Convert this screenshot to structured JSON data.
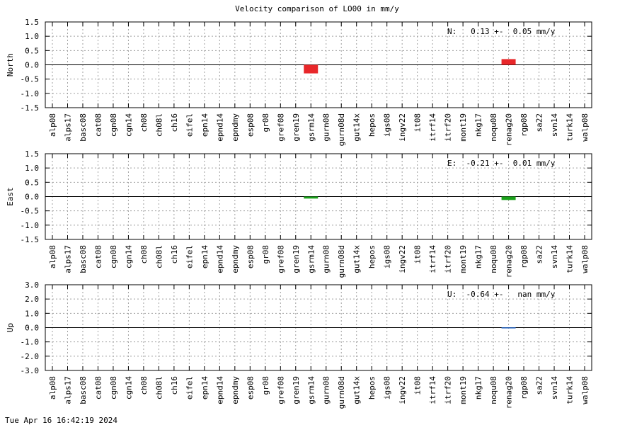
{
  "title": "Velocity comparison of LO00 in mm/y",
  "footer_timestamp": "Tue Apr 16 16:42:19 2024",
  "colors": {
    "north": "#e8272a",
    "east": "#1aa21a",
    "up": "#1f5fbf"
  },
  "chart_data": [
    {
      "type": "bar",
      "ylabel": "North",
      "ylim": [
        -1.5,
        1.5
      ],
      "yticks": [
        1.5,
        1.0,
        0.5,
        0.0,
        -0.5,
        -1.0,
        -1.5
      ],
      "ytick_labels": [
        "1.5",
        "1.0",
        "0.5",
        "0.0",
        "-0.5",
        "-1.0",
        "-1.5"
      ],
      "grid": true,
      "annotation": "N:   0.13 +-  0.05 mm/y",
      "categories": [
        "alp08",
        "alps17",
        "basc08",
        "cat08",
        "cgn08",
        "cgn14",
        "ch08",
        "ch08l",
        "ch16",
        "eifel",
        "epn14",
        "epnd14",
        "epndmy",
        "esp08",
        "gr08",
        "gref08",
        "gren19",
        "gsrm14",
        "gurn08",
        "gurn08d",
        "gut14x",
        "hepos",
        "igs08",
        "ingv22",
        "it08",
        "itrf14",
        "itrf20",
        "mont19",
        "nkg17",
        "noqu08",
        "renag20",
        "rgp08",
        "sa22",
        "svn14",
        "turk14",
        "walp08"
      ],
      "bars": [
        {
          "category": "gsrm14",
          "low": -0.3,
          "high": 0.0
        },
        {
          "category": "renag20",
          "low": 0.0,
          "high": 0.2
        }
      ]
    },
    {
      "type": "bar",
      "ylabel": "East",
      "ylim": [
        -1.5,
        1.5
      ],
      "yticks": [
        1.5,
        1.0,
        0.5,
        0.0,
        -0.5,
        -1.0,
        -1.5
      ],
      "ytick_labels": [
        "1.5",
        "1.0",
        "0.5",
        "0.0",
        "-0.5",
        "-1.0",
        "-1.5"
      ],
      "grid": true,
      "annotation": "E:  -0.21 +-  0.01 mm/y",
      "categories": [
        "alp08",
        "alps17",
        "basc08",
        "cat08",
        "cgn08",
        "cgn14",
        "ch08",
        "ch08l",
        "ch16",
        "eifel",
        "epn14",
        "epnd14",
        "epndmy",
        "esp08",
        "gr08",
        "gref08",
        "gren19",
        "gsrm14",
        "gurn08",
        "gurn08d",
        "gut14x",
        "hepos",
        "igs08",
        "ingv22",
        "it08",
        "itrf14",
        "itrf20",
        "mont19",
        "nkg17",
        "noqu08",
        "renag20",
        "rgp08",
        "sa22",
        "svn14",
        "turk14",
        "walp08"
      ],
      "bars": [
        {
          "category": "gsrm14",
          "low": -0.07,
          "high": 0.0
        },
        {
          "category": "renag20",
          "low": -0.12,
          "high": 0.0
        }
      ]
    },
    {
      "type": "bar",
      "ylabel": "Up",
      "ylim": [
        -3.0,
        3.0
      ],
      "yticks": [
        3.0,
        2.0,
        1.0,
        0.0,
        -1.0,
        -2.0,
        -3.0
      ],
      "ytick_labels": [
        "3.0",
        "2.0",
        "1.0",
        "0.0",
        "-1.0",
        "-2.0",
        "-3.0"
      ],
      "grid": true,
      "annotation": "U:  -0.64 +-   nan mm/y",
      "categories": [
        "alp08",
        "alps17",
        "basc08",
        "cat08",
        "cgn08",
        "cgn14",
        "ch08",
        "ch08l",
        "ch16",
        "eifel",
        "epn14",
        "epnd14",
        "epndmy",
        "esp08",
        "gr08",
        "gref08",
        "gren19",
        "gsrm14",
        "gurn08",
        "gurn08d",
        "gut14x",
        "hepos",
        "igs08",
        "ingv22",
        "it08",
        "itrf14",
        "itrf20",
        "mont19",
        "nkg17",
        "noqu08",
        "renag20",
        "rgp08",
        "sa22",
        "svn14",
        "turk14",
        "walp08"
      ],
      "bars": [
        {
          "category": "renag20",
          "low": -0.02,
          "high": 0.02
        }
      ]
    }
  ]
}
